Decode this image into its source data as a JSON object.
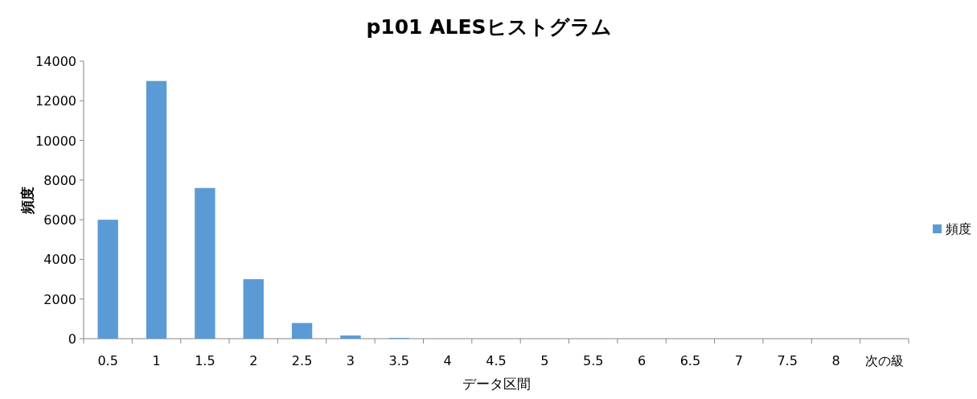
{
  "chart_data": {
    "type": "bar",
    "title": "p101 ALESヒストグラム",
    "xlabel": "データ区間",
    "ylabel": "頻度",
    "categories": [
      "0.5",
      "1",
      "1.5",
      "2",
      "2.5",
      "3",
      "3.5",
      "4",
      "4.5",
      "5",
      "5.5",
      "6",
      "6.5",
      "7",
      "7.5",
      "8",
      "次の級"
    ],
    "series": [
      {
        "name": "頻度",
        "color": "#5b9bd5",
        "values": [
          6000,
          13000,
          7600,
          3000,
          790,
          160,
          40,
          0,
          0,
          0,
          0,
          0,
          0,
          0,
          0,
          0,
          0
        ]
      }
    ],
    "ylim": [
      0,
      14000
    ],
    "yticks": [
      0,
      2000,
      4000,
      6000,
      8000,
      10000,
      12000,
      14000
    ],
    "grid": false,
    "legend": "right"
  }
}
